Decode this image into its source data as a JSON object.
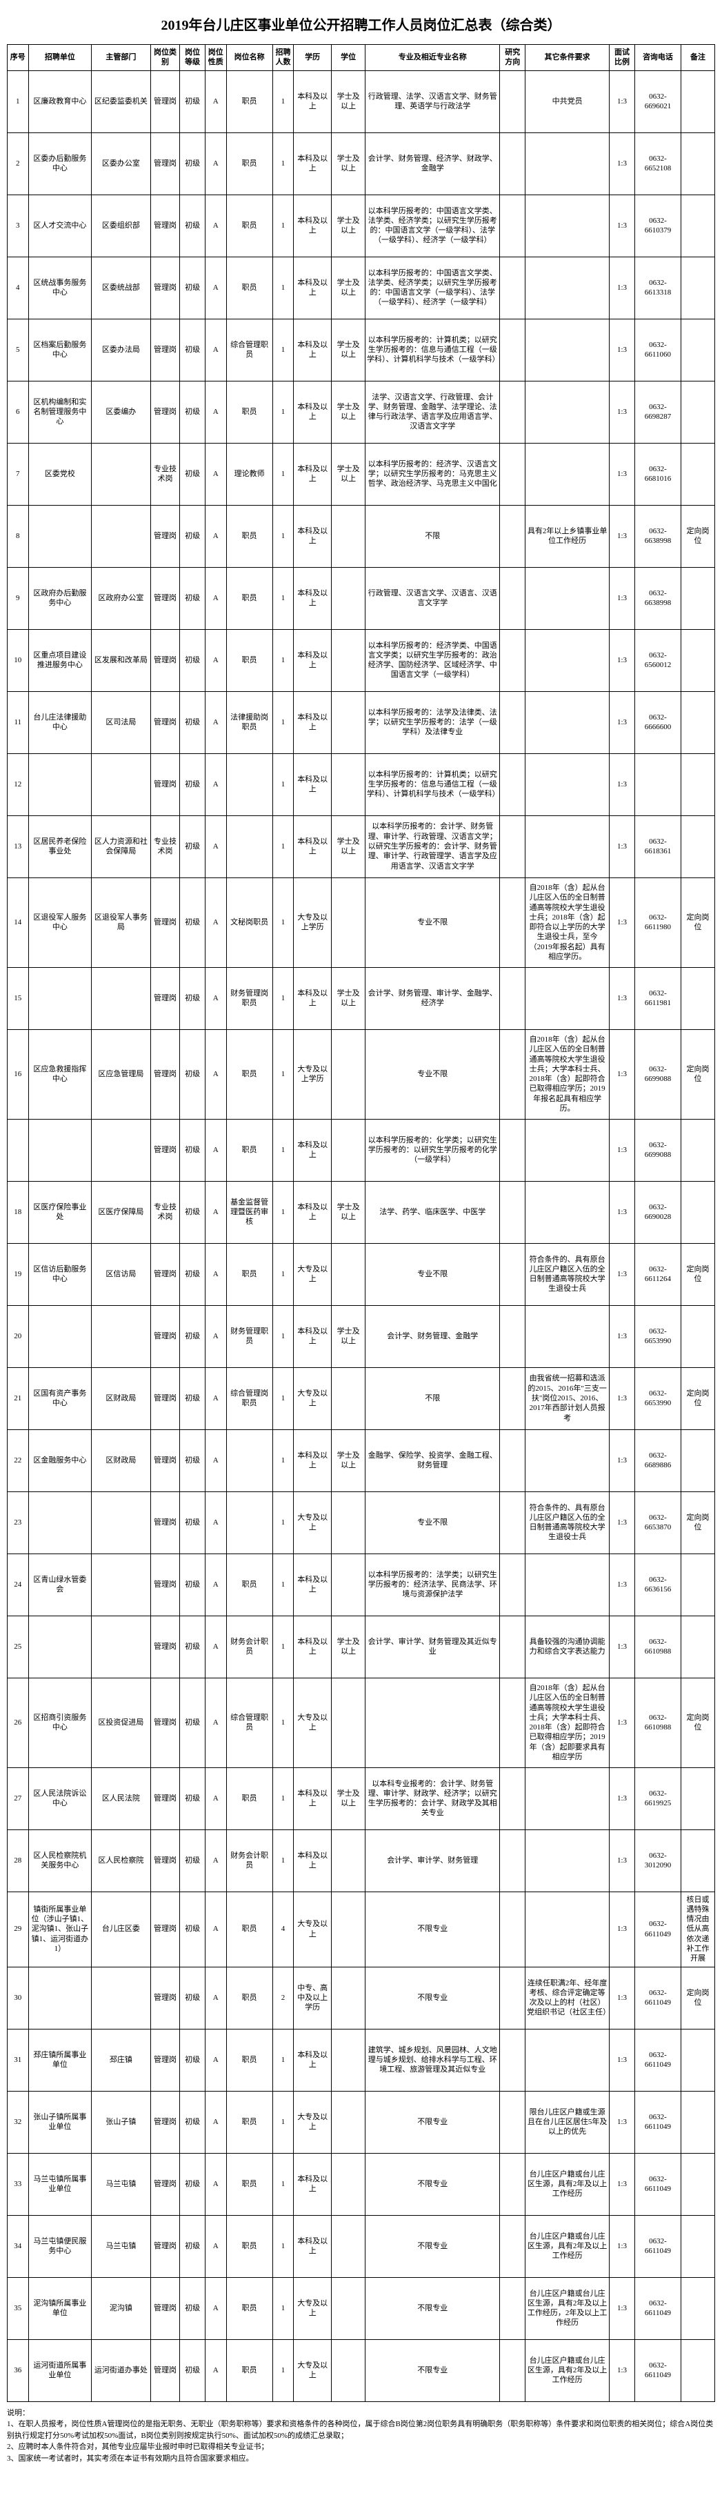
{
  "title": "2019年台儿庄区事业单位公开招聘工作人员岗位汇总表（综合类）",
  "headers": {
    "seq": "序号",
    "unit": "招聘单位",
    "dept": "主管部门",
    "cat": "岗位类别",
    "level": "岗位等级",
    "nature": "岗位性质",
    "posname": "岗位名称",
    "num": "招聘人数",
    "edu": "学历",
    "degree": "学位",
    "major": "专业及相近专业名称",
    "dir": "研究方向",
    "other": "其它条件要求",
    "ratio": "面试比例",
    "phone": "咨询电话",
    "remark": "备注"
  },
  "rows": [
    {
      "seq": "1",
      "unit": "区廉政教育中心",
      "dept": "区纪委监委机关",
      "cat": "管理岗",
      "level": "初级",
      "nature": "A",
      "posname": "职员",
      "num": "1",
      "edu": "本科及以上",
      "degree": "学士及以上",
      "major": "行政管理、法学、汉语言文学、财务管理、英语学与行政法学",
      "dir": "",
      "other": "中共党员",
      "ratio": "1:3",
      "phone": "0632-6696021",
      "remark": ""
    },
    {
      "seq": "2",
      "unit": "区委办后勤服务中心",
      "dept": "区委办公室",
      "cat": "管理岗",
      "level": "初级",
      "nature": "A",
      "posname": "职员",
      "num": "1",
      "edu": "本科及以上",
      "degree": "学士及以上",
      "major": "会计学、财务管理、经济学、财政学、金融学",
      "dir": "",
      "other": "",
      "ratio": "1:3",
      "phone": "0632-6652108",
      "remark": ""
    },
    {
      "seq": "3",
      "unit": "区人才交流中心",
      "dept": "区委组织部",
      "cat": "管理岗",
      "level": "初级",
      "nature": "A",
      "posname": "职员",
      "num": "1",
      "edu": "本科及以上",
      "degree": "学士及以上",
      "major": "以本科学历报考的：中国语言文学类、法学类、经济学类；以研究生学历报考的：中国语言文学（一级学科）、法学（一级学科）、经济学（一级学科）",
      "dir": "",
      "other": "",
      "ratio": "1:3",
      "phone": "0632-6610379",
      "remark": ""
    },
    {
      "seq": "4",
      "unit": "区统战事务服务中心",
      "dept": "区委统战部",
      "cat": "管理岗",
      "level": "初级",
      "nature": "A",
      "posname": "职员",
      "num": "1",
      "edu": "本科及以上",
      "degree": "学士及以上",
      "major": "以本科学历报考的：中国语言文学类、法学类、经济学类；以研究生学历报考的：中国语言文学（一级学科）、法学（一级学科）、经济学（一级学科）",
      "dir": "",
      "other": "",
      "ratio": "1:3",
      "phone": "0632-6613318",
      "remark": ""
    },
    {
      "seq": "5",
      "unit": "区档案后勤服务中心",
      "dept": "区委办法局",
      "cat": "管理岗",
      "level": "初级",
      "nature": "A",
      "posname": "综合管理职员",
      "num": "1",
      "edu": "本科及以上",
      "degree": "学士及以上",
      "major": "以本科学历报考的：计算机类；以研究生学历报考的：信息与通信工程（一级学科）、计算机科学与技术（一级学科）",
      "dir": "",
      "other": "",
      "ratio": "1:3",
      "phone": "0632-6611060",
      "remark": ""
    },
    {
      "seq": "6",
      "unit": "区机构编制和实名制管理服务中心",
      "dept": "区委编办",
      "cat": "管理岗",
      "level": "初级",
      "nature": "A",
      "posname": "职员",
      "num": "1",
      "edu": "本科及以上",
      "degree": "学士及以上",
      "major": "法学、汉语言文学、行政管理、会计学、财务管理、金融学、法学理论、法律与行政法学、语言学及应用语言学、汉语言文字学",
      "dir": "",
      "other": "",
      "ratio": "1:3",
      "phone": "0632-6698287",
      "remark": ""
    },
    {
      "seq": "7",
      "unit": "区委党校",
      "dept": "",
      "cat": "专业技术岗",
      "level": "初级",
      "nature": "A",
      "posname": "理论教师",
      "num": "1",
      "edu": "本科及以上",
      "degree": "学士及以上",
      "major": "以本科学历报考的：经济学、汉语言文学；以研究生学历报考的：马克思主义哲学、政治经济学、马克思主义中国化",
      "dir": "",
      "other": "",
      "ratio": "1:3",
      "phone": "0632-6681016",
      "remark": ""
    },
    {
      "seq": "8",
      "unit": "",
      "dept": "",
      "cat": "管理岗",
      "level": "初级",
      "nature": "A",
      "posname": "职员",
      "num": "1",
      "edu": "本科及以上",
      "degree": "",
      "major": "不限",
      "dir": "",
      "other": "具有2年以上乡镇事业单位工作经历",
      "ratio": "1:3",
      "phone": "0632-6638998",
      "remark": "定向岗位"
    },
    {
      "seq": "9",
      "unit": "区政府办后勤服务中心",
      "dept": "区政府办公室",
      "cat": "管理岗",
      "level": "初级",
      "nature": "A",
      "posname": "职员",
      "num": "1",
      "edu": "本科及以上",
      "degree": "",
      "major": "行政管理、汉语言文学、汉语言、汉语言文字学",
      "dir": "",
      "other": "",
      "ratio": "1:3",
      "phone": "0632-6638998",
      "remark": ""
    },
    {
      "seq": "10",
      "unit": "区重点项目建设推进服务中心",
      "dept": "区发展和改革局",
      "cat": "管理岗",
      "level": "初级",
      "nature": "A",
      "posname": "职员",
      "num": "1",
      "edu": "本科及以上",
      "degree": "",
      "major": "以本科学历报考的：经济学类、中国语言文学类；以研究生学历报考的：政治经济学、国防经济学、区域经济学、中国语言文学（一级学科）",
      "dir": "",
      "other": "",
      "ratio": "1:3",
      "phone": "0632-6560012",
      "remark": ""
    },
    {
      "seq": "11",
      "unit": "台儿庄法律援助中心",
      "dept": "区司法局",
      "cat": "管理岗",
      "level": "初级",
      "nature": "A",
      "posname": "法律援助岗职员",
      "num": "1",
      "edu": "本科及以上",
      "degree": "",
      "major": "以本科学历报考的：法学及法律类、法学；以研究生学历报考的：法学（一级学科）及法律专业",
      "dir": "",
      "other": "",
      "ratio": "1:3",
      "phone": "0632-6666600",
      "remark": ""
    },
    {
      "seq": "12",
      "unit": "",
      "dept": "",
      "cat": "管理岗",
      "level": "初级",
      "nature": "A",
      "posname": "",
      "num": "1",
      "edu": "本科及以上",
      "degree": "",
      "major": "以本科学历报考的：计算机类；以研究生学历报考的：信息与通信工程（一级学科）、计算机科学与技术（一级学科）",
      "dir": "",
      "other": "",
      "ratio": "1:3",
      "phone": "",
      "remark": ""
    },
    {
      "seq": "13",
      "unit": "区居民养老保险事业处",
      "dept": "区人力资源和社会保障局",
      "cat": "专业技术岗",
      "level": "初级",
      "nature": "A",
      "posname": "",
      "num": "1",
      "edu": "本科及以上",
      "degree": "学士及以上",
      "major": "以本科学历报考的：会计学、财务管理、审计学、行政管理、汉语言文学；以研究生学历报考的：会计学、财务管理、审计学、行政管理学、语言学及应用语言学、汉语言文字学",
      "dir": "",
      "other": "",
      "ratio": "1:3",
      "phone": "0632-6618361",
      "remark": ""
    },
    {
      "seq": "14",
      "unit": "区退役军人服务中心",
      "dept": "区退役军人事务局",
      "cat": "管理岗",
      "level": "初级",
      "nature": "A",
      "posname": "文秘岗职员",
      "num": "1",
      "edu": "大专及以上学历",
      "degree": "",
      "major": "专业不限",
      "dir": "",
      "other": "自2018年（含）起从台儿庄区入伍的全日制普通高等院校大学生退役士兵；2018年（含）起即符合以上学历的大学生退役士兵，至今（2019年报名起）具有相应学历。",
      "ratio": "1:3",
      "phone": "0632-6611980",
      "remark": "定向岗位"
    },
    {
      "seq": "15",
      "unit": "",
      "dept": "",
      "cat": "管理岗",
      "level": "初级",
      "nature": "A",
      "posname": "财务管理岗职员",
      "num": "1",
      "edu": "本科及以上",
      "degree": "学士及以上",
      "major": "会计学、财务管理、审计学、金融学、经济学",
      "dir": "",
      "other": "",
      "ratio": "1:3",
      "phone": "0632-6611981",
      "remark": ""
    },
    {
      "seq": "16",
      "unit": "区应急救援指挥中心",
      "dept": "区应急管理局",
      "cat": "管理岗",
      "level": "初级",
      "nature": "A",
      "posname": "职员",
      "num": "1",
      "edu": "大专及以上学历",
      "degree": "",
      "major": "专业不限",
      "dir": "",
      "other": "自2018年（含）起从台儿庄区入伍的全日制普通高等院校大学生退役士兵；大学本科士兵、2018年（含）起即符合已取得相应学历；2019年报名起具有相应学历。",
      "ratio": "1:3",
      "phone": "0632-6699088",
      "remark": "定向岗位"
    },
    {
      "seq": "",
      "unit": "",
      "dept": "",
      "cat": "管理岗",
      "level": "初级",
      "nature": "A",
      "posname": "职员",
      "num": "1",
      "edu": "本科及以上",
      "degree": "",
      "major": "以本科学历报考的：化学类；以研究生学历报考的：以研究生学历报考的化学（一级学科）",
      "dir": "",
      "other": "",
      "ratio": "1:3",
      "phone": "0632-6699088",
      "remark": ""
    },
    {
      "seq": "18",
      "unit": "区医疗保险事业处",
      "dept": "区医疗保障局",
      "cat": "专业技术岗",
      "level": "初级",
      "nature": "A",
      "posname": "基金监督管理暨医药审核",
      "num": "1",
      "edu": "本科及以上",
      "degree": "学士及以上",
      "major": "法学、药学、临床医学、中医学",
      "dir": "",
      "other": "",
      "ratio": "1:3",
      "phone": "0632-6690028",
      "remark": ""
    },
    {
      "seq": "19",
      "unit": "区信访后勤服务中心",
      "dept": "区信访局",
      "cat": "管理岗",
      "level": "初级",
      "nature": "A",
      "posname": "职员",
      "num": "1",
      "edu": "大专及以上",
      "degree": "",
      "major": "专业不限",
      "dir": "",
      "other": "符合条件的、具有原台儿庄区户籍区入伍的全日制普通高等院校大学生退役士兵",
      "ratio": "1:3",
      "phone": "0632-6611264",
      "remark": "定向岗位"
    },
    {
      "seq": "20",
      "unit": "",
      "dept": "",
      "cat": "管理岗",
      "level": "初级",
      "nature": "A",
      "posname": "财务管理职员",
      "num": "1",
      "edu": "本科及以上",
      "degree": "学士及以上",
      "major": "会计学、财务管理、金融学",
      "dir": "",
      "other": "",
      "ratio": "1:3",
      "phone": "0632-6653990",
      "remark": ""
    },
    {
      "seq": "21",
      "unit": "区国有资产事务中心",
      "dept": "区财政局",
      "cat": "管理岗",
      "level": "初级",
      "nature": "A",
      "posname": "综合管理岗职员",
      "num": "1",
      "edu": "大专及以上",
      "degree": "",
      "major": "不限",
      "dir": "",
      "other": "由我省统一招募和选派的2015、2016年\"三支一扶\"岗位2015、2016、2017年西部计划人员报考",
      "ratio": "1:3",
      "phone": "0632-6653990",
      "remark": "定向岗位"
    },
    {
      "seq": "22",
      "unit": "区金融服务中心",
      "dept": "区财政局",
      "cat": "管理岗",
      "level": "初级",
      "nature": "A",
      "posname": "",
      "num": "1",
      "edu": "本科及以上",
      "degree": "学士及以上",
      "major": "金融学、保险学、投资学、金融工程、财务管理",
      "dir": "",
      "other": "",
      "ratio": "1:3",
      "phone": "0632-6689886",
      "remark": ""
    },
    {
      "seq": "23",
      "unit": "",
      "dept": "",
      "cat": "管理岗",
      "level": "初级",
      "nature": "A",
      "posname": "",
      "num": "1",
      "edu": "大专及以上",
      "degree": "",
      "major": "专业不限",
      "dir": "",
      "other": "符合条件的、具有原台儿庄区户籍区入伍的全日制普通高等院校大学生退役士兵",
      "ratio": "1:3",
      "phone": "0632-6653870",
      "remark": "定向岗位"
    },
    {
      "seq": "24",
      "unit": "区青山绿水管委会",
      "dept": "",
      "cat": "管理岗",
      "level": "初级",
      "nature": "A",
      "posname": "职员",
      "num": "1",
      "edu": "本科及以上",
      "degree": "",
      "major": "以本科学历报考的：法学类；以研究生学历报考的：经济法学、民商法学、环境与资源保护法学",
      "dir": "",
      "other": "",
      "ratio": "1:3",
      "phone": "0632-6636156",
      "remark": ""
    },
    {
      "seq": "25",
      "unit": "",
      "dept": "",
      "cat": "管理岗",
      "level": "初级",
      "nature": "A",
      "posname": "财务会计职员",
      "num": "1",
      "edu": "本科及以上",
      "degree": "学士及以上",
      "major": "会计学、审计学、财务管理及其近似专业",
      "dir": "",
      "other": "具备较强的沟通协调能力和综合文字表达能力",
      "ratio": "1:3",
      "phone": "0632-6610988",
      "remark": ""
    },
    {
      "seq": "26",
      "unit": "区招商引资服务中心",
      "dept": "区投资促进局",
      "cat": "管理岗",
      "level": "初级",
      "nature": "A",
      "posname": "综合管理职员",
      "num": "1",
      "edu": "大专及以上",
      "degree": "",
      "major": "",
      "dir": "",
      "other": "自2018年（含）起从台儿庄区入伍的全日制普通高等院校大学生退役士兵；大学本科士兵、2018年（含）起即符合已取得相应学历；2019年（含）起即要求具有相应学历",
      "ratio": "1:3",
      "phone": "0632-6610988",
      "remark": "定向岗位"
    },
    {
      "seq": "27",
      "unit": "区人民法院诉讼中心",
      "dept": "区人民法院",
      "cat": "管理岗",
      "level": "初级",
      "nature": "A",
      "posname": "职员",
      "num": "1",
      "edu": "本科及以上",
      "degree": "学士及以上",
      "major": "以本科专业报考的：会计学、财务管理、审计学、财政学、经济学；以研究生学历报考的：会计学、财政学及其相关专业",
      "dir": "",
      "other": "",
      "ratio": "1:3",
      "phone": "0632-6619925",
      "remark": ""
    },
    {
      "seq": "28",
      "unit": "区人民检察院机关服务中心",
      "dept": "区人民检察院",
      "cat": "管理岗",
      "level": "初级",
      "nature": "A",
      "posname": "财务会计职员",
      "num": "1",
      "edu": "本科及以上",
      "degree": "",
      "major": "会计学、审计学、财务管理",
      "dir": "",
      "other": "",
      "ratio": "1:3",
      "phone": "0632-3012090",
      "remark": ""
    },
    {
      "seq": "29",
      "unit": "镇街所属事业单位（涉山子镇1、泥沟镇1、张山子镇1、运河街道办1）",
      "dept": "台儿庄区委",
      "cat": "管理岗",
      "level": "初级",
      "nature": "A",
      "posname": "职员",
      "num": "4",
      "edu": "大专及以上",
      "degree": "",
      "major": "不限专业",
      "dir": "",
      "other": "",
      "ratio": "1:3",
      "phone": "0632-6611049",
      "remark": "核日或遇特殊情况由低从高依次递补工作开展"
    },
    {
      "seq": "30",
      "unit": "",
      "dept": "",
      "cat": "管理岗",
      "level": "初级",
      "nature": "A",
      "posname": "职员",
      "num": "2",
      "edu": "中专、高中及以上学历",
      "degree": "",
      "major": "不限专业",
      "dir": "",
      "other": "连续任职满2年、经年度考核、综合评定确定等次及以上的村（社区）党组织书记（社区主任）",
      "ratio": "1:3",
      "phone": "0632-6611049",
      "remark": "定向岗位"
    },
    {
      "seq": "31",
      "unit": "邳庄镇所属事业单位",
      "dept": "邳庄镇",
      "cat": "管理岗",
      "level": "初级",
      "nature": "A",
      "posname": "职员",
      "num": "1",
      "edu": "本科及以上",
      "degree": "",
      "major": "建筑学、城乡规划、风景园林、人文地理与城乡规划、给排水科学与工程、环境工程、旅游管理及其近似专业",
      "dir": "",
      "other": "",
      "ratio": "1:3",
      "phone": "0632-6611049",
      "remark": ""
    },
    {
      "seq": "32",
      "unit": "张山子镇所属事业单位",
      "dept": "张山子镇",
      "cat": "管理岗",
      "level": "初级",
      "nature": "A",
      "posname": "职员",
      "num": "1",
      "edu": "大专及以上",
      "degree": "",
      "major": "不限专业",
      "dir": "",
      "other": "限台儿庄区户籍或生源且在台儿庄区居住5年及以上的优先",
      "ratio": "1:3",
      "phone": "0632-6611049",
      "remark": ""
    },
    {
      "seq": "33",
      "unit": "马兰屯镇所属事业单位",
      "dept": "马兰屯镇",
      "cat": "管理岗",
      "level": "初级",
      "nature": "A",
      "posname": "职员",
      "num": "1",
      "edu": "本科及以上",
      "degree": "",
      "major": "不限专业",
      "dir": "",
      "other": "台儿庄区户籍或台儿庄区生源，具有2年及以上工作经历",
      "ratio": "1:3",
      "phone": "0632-6611049",
      "remark": ""
    },
    {
      "seq": "34",
      "unit": "马兰屯镇便民服务中心",
      "dept": "马兰屯镇",
      "cat": "管理岗",
      "level": "初级",
      "nature": "A",
      "posname": "职员",
      "num": "1",
      "edu": "本科及以上",
      "degree": "",
      "major": "不限专业",
      "dir": "",
      "other": "台儿庄区户籍或台儿庄区生源，具有2年及以上工作经历",
      "ratio": "1:3",
      "phone": "0632-6611049",
      "remark": ""
    },
    {
      "seq": "35",
      "unit": "泥沟镇所属事业单位",
      "dept": "泥沟镇",
      "cat": "管理岗",
      "level": "初级",
      "nature": "A",
      "posname": "职员",
      "num": "1",
      "edu": "大专及以上",
      "degree": "",
      "major": "不限专业",
      "dir": "",
      "other": "台儿庄区户籍或台儿庄区生源，具有2年及以上工作经历，2年及以上工作经历",
      "ratio": "1:3",
      "phone": "0632-6611049",
      "remark": ""
    },
    {
      "seq": "36",
      "unit": "运河街道所属事业单位",
      "dept": "运河街道办事处",
      "cat": "管理岗",
      "level": "初级",
      "nature": "A",
      "posname": "职员",
      "num": "1",
      "edu": "大专及以上",
      "degree": "",
      "major": "不限专业",
      "dir": "",
      "other": "台儿庄区户籍或台儿庄区生源，具有2年及以上工作经历",
      "ratio": "1:3",
      "phone": "0632-6611049",
      "remark": ""
    }
  ],
  "notes": {
    "title": "说明：",
    "line1": "1、在职人员报考，岗位性质A管理岗位的是指无职务、无职业（职务职称等）要求和资格条件的各种岗位，属于综合B岗位第2岗位职务具有明确职务（职务职称等）条件要求和岗位职责的相关岗位；综合A岗位类别执行规定打分50%考试加权50%面试，B岗位类别则按规定执行50%、面试加权50%的成绩汇总录取；",
    "line2": "2、应聘时本人条件符合对，其他专业应届毕业报时申时已取得相关专业证书；",
    "line3": "3、国家统一考试者时，其实考须在本证书有效期内且符合国家要求相应。"
  }
}
